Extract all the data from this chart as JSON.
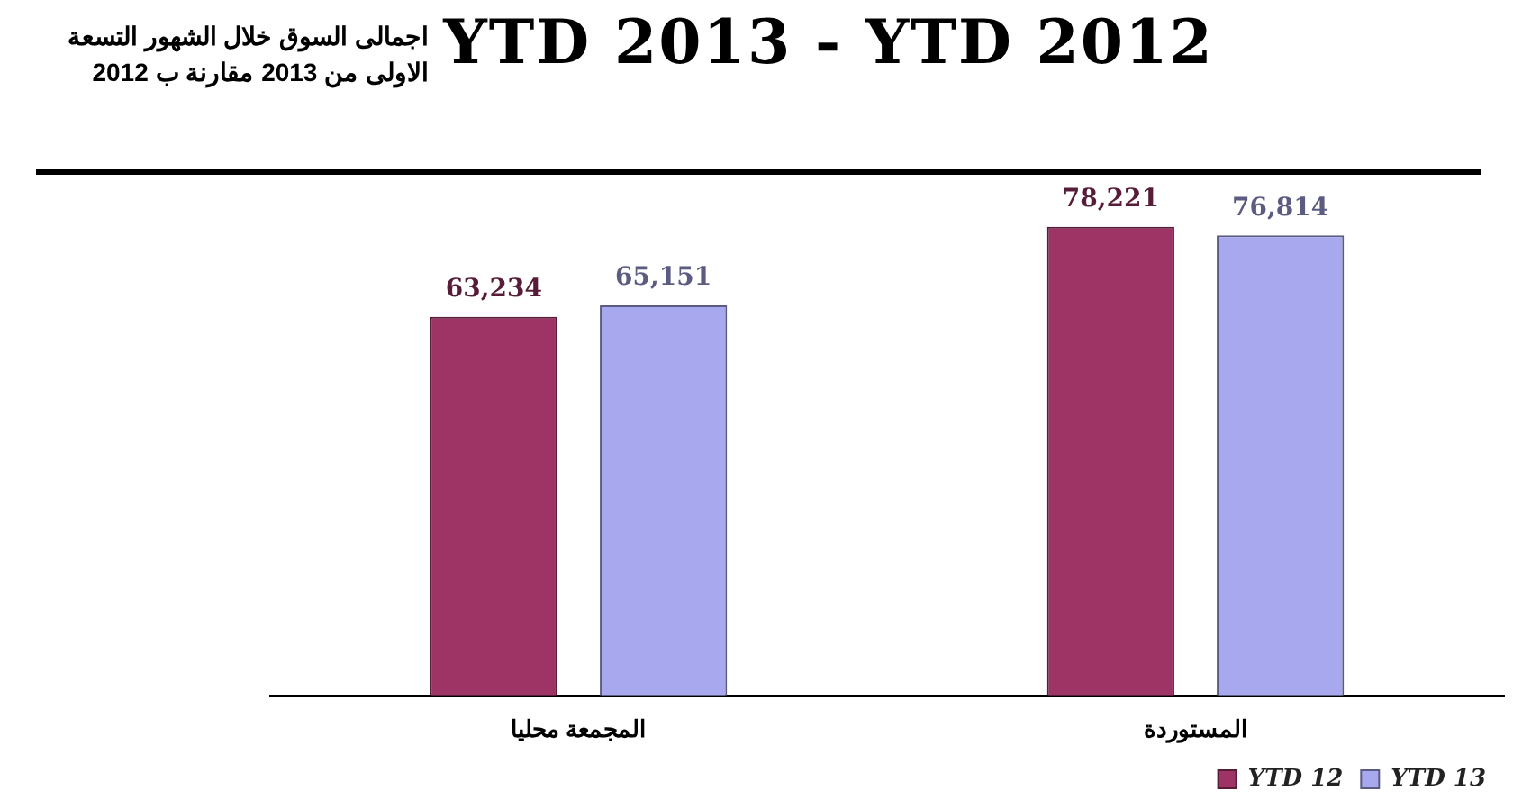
{
  "chart_data": {
    "type": "bar",
    "title": "YTD 2013 - YTD 2012",
    "subtitle": "اجمالى السوق خلال الشهور التسعة الاولى من 2013 مقارنة ب 2012",
    "categories": [
      "المجمعة محليا",
      "المستوردة"
    ],
    "series": [
      {
        "name": "YTD 12",
        "color": "#9e3366",
        "values": [
          63234,
          78221
        ],
        "value_labels": [
          "63,234",
          "78,221"
        ]
      },
      {
        "name": "YTD 13",
        "color": "#a8a8ee",
        "values": [
          65151,
          76814
        ],
        "value_labels": [
          "65,151",
          "76,814"
        ]
      }
    ],
    "legend": "bottom right"
  }
}
